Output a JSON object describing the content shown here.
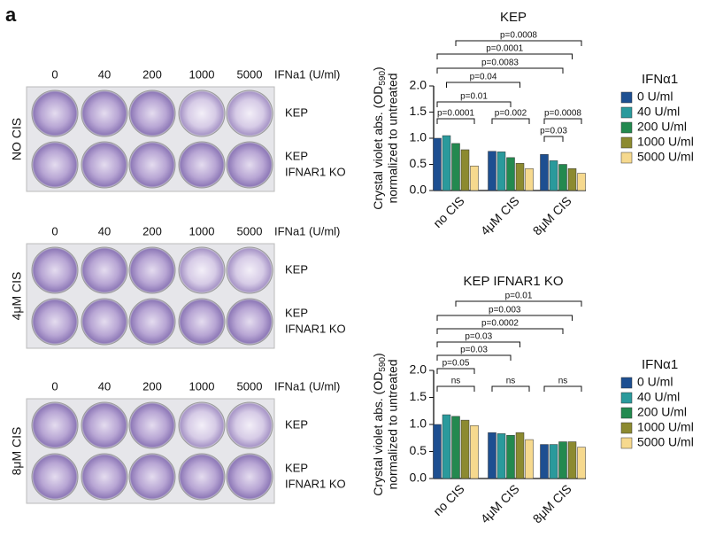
{
  "panel": {
    "letter": "a",
    "blocks": [
      {
        "condition": "NO CIS",
        "doses": [
          "0",
          "40",
          "200",
          "1000",
          "5000"
        ],
        "unit": "IFNa1 (U/ml)",
        "rows": [
          [
            "KEP"
          ],
          [
            "KEP",
            "IFNAR1 KO"
          ]
        ]
      },
      {
        "condition": "4μM CIS",
        "doses": [
          "0",
          "40",
          "200",
          "1000",
          "5000"
        ],
        "unit": "IFNa1 (U/ml)",
        "rows": [
          [
            "KEP"
          ],
          [
            "KEP",
            "IFNAR1 KO"
          ]
        ]
      },
      {
        "condition": "8μM CIS",
        "doses": [
          "0",
          "40",
          "200",
          "1000",
          "5000"
        ],
        "unit": "IFNa1 (U/ml)",
        "rows": [
          [
            "KEP"
          ],
          [
            "KEP",
            "IFNAR1 KO"
          ]
        ]
      }
    ]
  },
  "chart_data": [
    {
      "type": "bar",
      "title": "KEP",
      "ylabel": {
        "main": "Crystal violet abs. (OD",
        "sub": "590",
        "end": ")",
        "line2": "normalized to untreated"
      },
      "legend_title": "IFNα1",
      "categories": [
        "no CIS",
        "4μM CIS",
        "8μM CIS"
      ],
      "series": [
        {
          "name": "0 U/ml",
          "color": "#1d4f91",
          "values": [
            1.0,
            0.75,
            0.69
          ]
        },
        {
          "name": "40 U/ml",
          "color": "#2a9a9c",
          "values": [
            1.05,
            0.74,
            0.57
          ]
        },
        {
          "name": "200 U/ml",
          "color": "#23894f",
          "values": [
            0.9,
            0.63,
            0.5
          ]
        },
        {
          "name": "1000 U/ml",
          "color": "#8c8a30",
          "values": [
            0.78,
            0.52,
            0.42
          ]
        },
        {
          "name": "5000 U/ml",
          "color": "#f6d98e",
          "values": [
            0.47,
            0.42,
            0.33
          ]
        }
      ],
      "ylim": [
        0,
        2.0
      ],
      "yticks": [
        {
          "value": 0,
          "label": "0.0"
        },
        0.5,
        {
          "value": 1,
          "label": "1.0"
        },
        1.5,
        {
          "value": 2,
          "label": "2.0"
        }
      ],
      "annotations": [
        "p=0.0008",
        "p=0.0001",
        "p=0.0083",
        "p=0.04",
        "p=0.01",
        "p=0.0001",
        "p=0.002",
        "p=0.0008",
        "p=0.03"
      ]
    },
    {
      "type": "bar",
      "title": "KEP IFNAR1 KO",
      "ylabel": {
        "main": "Crystal violet abs. (OD",
        "sub": "590",
        "end": ")",
        "line2": "normalized to untreated"
      },
      "legend_title": "IFNα1",
      "categories": [
        "no CIS",
        "4μM CIS",
        "8μM CIS"
      ],
      "series": [
        {
          "name": "0 U/ml",
          "color": "#1d4f91",
          "values": [
            1.0,
            0.85,
            0.63
          ]
        },
        {
          "name": "40 U/ml",
          "color": "#2a9a9c",
          "values": [
            1.18,
            0.83,
            0.63
          ]
        },
        {
          "name": "200 U/ml",
          "color": "#23894f",
          "values": [
            1.15,
            0.8,
            0.68
          ]
        },
        {
          "name": "1000 U/ml",
          "color": "#8c8a30",
          "values": [
            1.08,
            0.85,
            0.68
          ]
        },
        {
          "name": "5000 U/ml",
          "color": "#f6d98e",
          "values": [
            0.98,
            0.72,
            0.58
          ]
        }
      ],
      "ylim": [
        0,
        2.0
      ],
      "yticks": [
        {
          "value": 0,
          "label": "0.0"
        },
        0.5,
        {
          "value": 1,
          "label": "1.0"
        },
        1.5,
        {
          "value": 2,
          "label": "2.0"
        }
      ],
      "annotations": [
        "p=0.01",
        "p=0.003",
        "p=0.0002",
        "p=0.03",
        "p=0.03",
        "p=0.05",
        "ns",
        "ns",
        "ns"
      ]
    }
  ]
}
